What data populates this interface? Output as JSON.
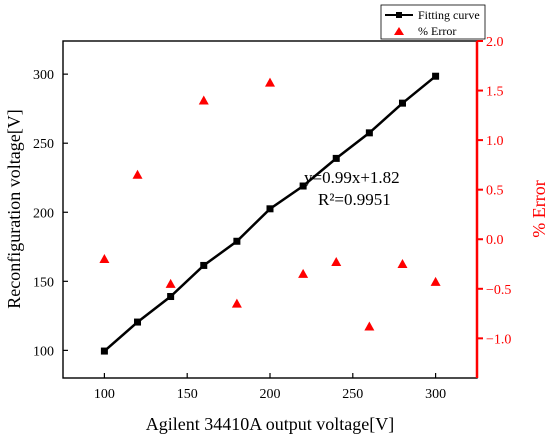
{
  "chart_data": {
    "type": "line",
    "xlabel": "Agilent 34410A output voltage[V]",
    "ylabel": "Reconfiguration voltage[V]",
    "ylabel_right": "% Error",
    "xlim": [
      75,
      325
    ],
    "ylim": [
      80,
      324
    ],
    "ylim_right": [
      -1.4,
      2.0
    ],
    "x_ticks": [
      100,
      150,
      200,
      250,
      300
    ],
    "y_ticks": [
      100,
      150,
      200,
      250,
      300
    ],
    "y_right_ticks": [
      -1.0,
      -0.5,
      0.0,
      0.5,
      1.0,
      1.5,
      2.0
    ],
    "y_right_tick_labels": [
      "−1.0",
      "−0.5",
      "0.0",
      "0.5",
      "1.0",
      "1.5",
      "2.0"
    ],
    "grid": false,
    "legend_position": "top-right",
    "colors": {
      "fit": "#000000",
      "error": "#ff0000",
      "right_axis": "#ff0000"
    },
    "series": [
      {
        "name": "Fitting curve",
        "axis": "left",
        "style": "line-square-markers",
        "x": [
          100,
          120,
          140,
          160,
          180,
          200,
          220,
          240,
          260,
          280,
          300
        ],
        "y": [
          99.5,
          120.5,
          139,
          161.5,
          179,
          202.5,
          219,
          239,
          257.5,
          279,
          298.5
        ]
      },
      {
        "name": "% Error",
        "axis": "right",
        "style": "triangle-markers",
        "x": [
          100,
          120,
          140,
          160,
          180,
          200,
          220,
          240,
          260,
          280,
          300
        ],
        "y": [
          -0.2,
          0.65,
          -0.45,
          1.4,
          -0.65,
          1.58,
          -0.35,
          -0.23,
          -0.88,
          -0.25,
          -0.43
        ]
      }
    ],
    "annotations": [
      "y=0.99x+1.82",
      "R²=0.9951"
    ]
  }
}
